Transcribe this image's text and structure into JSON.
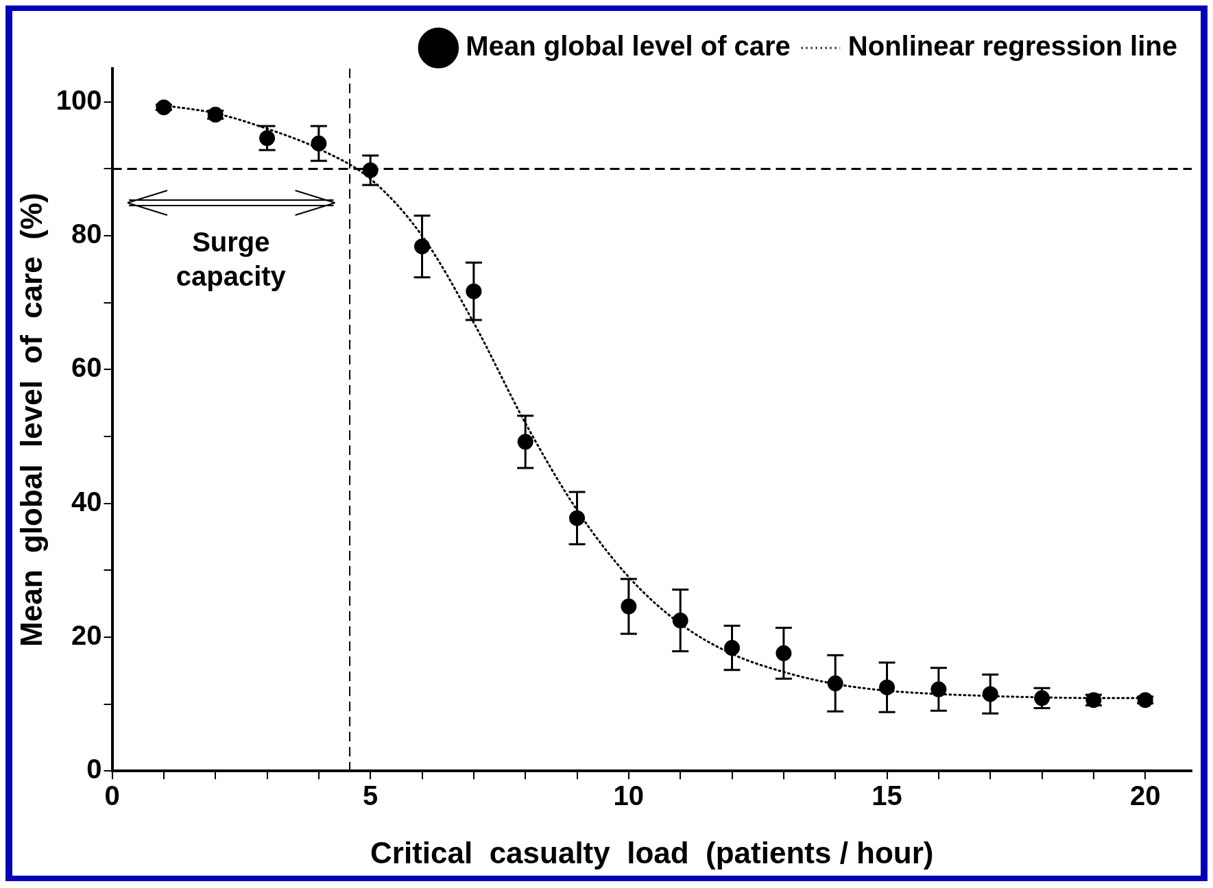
{
  "chart_data": {
    "type": "scatter",
    "xlabel": "Critical  casualty  load  (patients / hour)",
    "ylabel": "Mean  global  level  of  care  (%)",
    "series": [
      {
        "name": "Mean global level of care",
        "type": "scatter",
        "color": "#000000",
        "marker": "circle",
        "x": [
          1,
          2,
          3,
          4,
          5,
          6,
          7,
          8,
          9,
          10,
          11,
          12,
          13,
          14,
          15,
          16,
          17,
          18,
          19,
          20
        ],
        "values": [
          99.2,
          98.1,
          94.6,
          93.8,
          89.8,
          78.4,
          71.7,
          49.2,
          37.8,
          24.6,
          22.5,
          18.4,
          17.6,
          13.1,
          12.5,
          12.2,
          11.5,
          10.9,
          10.6,
          10.6
        ],
        "errors": [
          0.4,
          0.6,
          1.8,
          2.6,
          2.2,
          4.6,
          4.3,
          3.9,
          3.9,
          4.1,
          4.6,
          3.3,
          3.8,
          4.2,
          3.7,
          3.2,
          2.9,
          1.5,
          0.8,
          0.5
        ]
      },
      {
        "name": "Nonlinear regression line",
        "type": "line",
        "color": "#000000",
        "marker": "none",
        "line_style": "dotted",
        "x": [
          1,
          2,
          3,
          4,
          5,
          6,
          7,
          8,
          9,
          10,
          11,
          12,
          13,
          14,
          15,
          16,
          17,
          18,
          19,
          20
        ],
        "values": [
          99.5,
          98.3,
          96,
          93,
          88.5,
          80,
          67,
          52,
          39,
          29,
          22,
          17.5,
          14.8,
          13,
          12,
          11.5,
          11.2,
          11,
          10.9,
          10.9
        ]
      }
    ],
    "xlim": [
      0,
      20.9
    ],
    "ylim": [
      0,
      105
    ],
    "xticks": [
      0,
      {
        "value": 1,
        "label": null
      },
      {
        "value": 2,
        "label": null
      },
      {
        "value": 3,
        "label": null
      },
      {
        "value": 4,
        "label": null
      },
      5,
      {
        "value": 6,
        "label": null
      },
      {
        "value": 7,
        "label": null
      },
      {
        "value": 8,
        "label": null
      },
      {
        "value": 9,
        "label": null
      },
      10,
      {
        "value": 11,
        "label": null
      },
      {
        "value": 12,
        "label": null
      },
      {
        "value": 13,
        "label": null
      },
      {
        "value": 14,
        "label": null
      },
      15,
      {
        "value": 16,
        "label": null
      },
      {
        "value": 17,
        "label": null
      },
      {
        "value": 18,
        "label": null
      },
      {
        "value": 19,
        "label": null
      },
      20
    ],
    "yticks": [
      0,
      {
        "value": 10,
        "label": null
      },
      20,
      {
        "value": 30,
        "label": null
      },
      40,
      {
        "value": 50,
        "label": null
      },
      60,
      {
        "value": 70,
        "label": null
      },
      80,
      {
        "value": 90,
        "label": null
      },
      100
    ],
    "ref_lines": [
      {
        "axis": "y",
        "value": 90,
        "line_style": "dashed"
      },
      {
        "axis": "x",
        "value": 4.6,
        "line_style": "dashed"
      }
    ],
    "annotations": [
      "Surge\ncapacity"
    ],
    "grid": false,
    "legend": "top right"
  }
}
